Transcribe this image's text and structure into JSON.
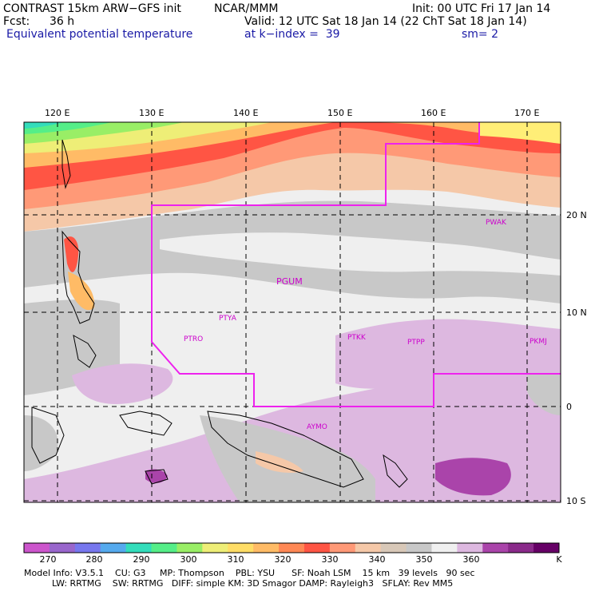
{
  "header": {
    "model_title": "CONTRAST 15km ARW−GFS init",
    "org": "NCAR/MMM",
    "init": "Init: 00 UTC Fri 17 Jan 14",
    "fcst_label": "Fcst:",
    "fcst_value": "36 h",
    "valid": "Valid: 12 UTC Sat 18 Jan 14 (22 ChT Sat 18 Jan 14)",
    "field_name": "Equivalent potential temperature",
    "level": "at k−index =  39",
    "smoothing": "sm= 2"
  },
  "axes": {
    "longitude_ticks": [
      "120 E",
      "130 E",
      "140 E",
      "150 E",
      "160 E",
      "170 E"
    ],
    "latitude_ticks": [
      "20 N",
      "10 N",
      "0",
      "10 S"
    ]
  },
  "stations": [
    "PWAK",
    "PGUM",
    "PTYA",
    "PTRO",
    "PTKK",
    "PTPP",
    "PKMJ",
    "AYMO"
  ],
  "colorbar": {
    "labels": [
      "270",
      "280",
      "290",
      "300",
      "310",
      "320",
      "330",
      "340",
      "350",
      "360",
      "K"
    ],
    "colors": [
      "#cc55cc",
      "#9966cc",
      "#7777ee",
      "#55aaee",
      "#33ddbb",
      "#55ee88",
      "#99ee66",
      "#eeee77",
      "#ffdd66",
      "#ffbb66",
      "#ff8855",
      "#ff5544",
      "#ff9977",
      "#f5c8a8",
      "#d8c8b8",
      "#c8c8c8",
      "#f0f0f0",
      "#ddb8e0",
      "#aa44aa",
      "#8a2a8a",
      "#660066"
    ]
  },
  "footer": {
    "line1": "Model Info: V3.5.1    CU: G3     MP: Thompson    PBL: YSU      SF: Noah LSM    15 km   39 levels   90 sec",
    "line2": "          LW: RRTMG    SW: RRTMG   DIFF: simple KM: 3D Smagor DAMP: Rayleigh3   SFLAY: Rev MM5"
  }
}
